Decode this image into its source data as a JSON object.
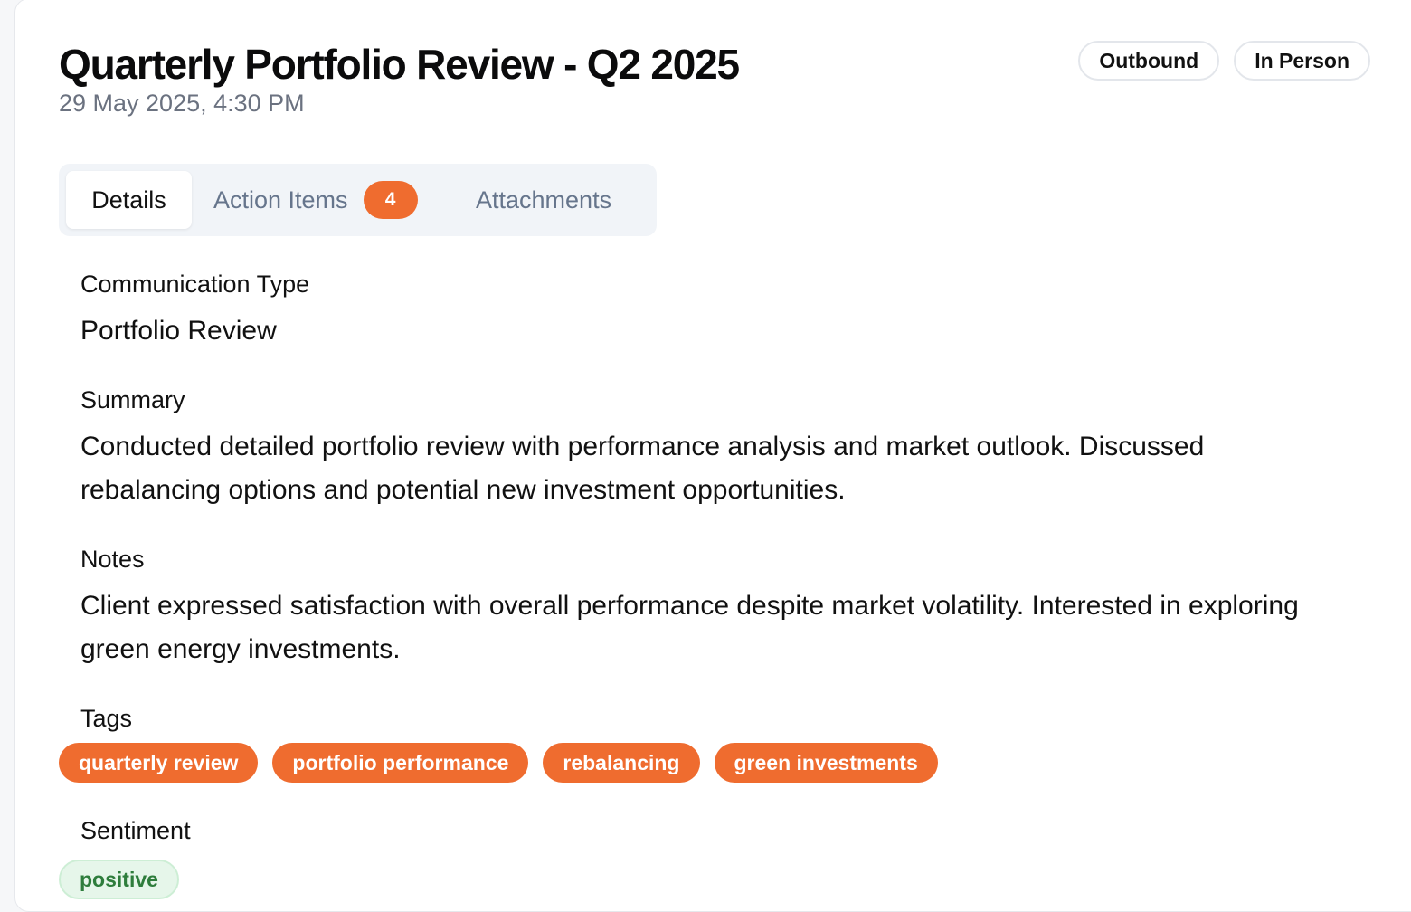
{
  "header": {
    "title": "Quarterly Portfolio Review - Q2 2025",
    "date": "29 May 2025, 4:30 PM",
    "badges": [
      "Outbound",
      "In Person"
    ]
  },
  "tabs": {
    "details": "Details",
    "action_items": "Action Items",
    "action_items_count": "4",
    "attachments": "Attachments"
  },
  "fields": {
    "communication_type_label": "Communication Type",
    "communication_type_value": "Portfolio Review",
    "summary_label": "Summary",
    "summary_value": "Conducted detailed portfolio review with performance analysis and market outlook. Discussed rebalancing options and potential new investment opportunities.",
    "notes_label": "Notes",
    "notes_value": "Client expressed satisfaction with overall performance despite market volatility. Interested in exploring green energy investments.",
    "tags_label": "Tags",
    "tags": [
      "quarterly review",
      "portfolio performance",
      "rebalancing",
      "green investments"
    ],
    "sentiment_label": "Sentiment",
    "sentiment_value": "positive"
  },
  "colors": {
    "accent": "#ef6c2f",
    "positive_bg": "#e6f6ea",
    "positive_text": "#2e7d3c",
    "muted_text": "#6b7280"
  }
}
